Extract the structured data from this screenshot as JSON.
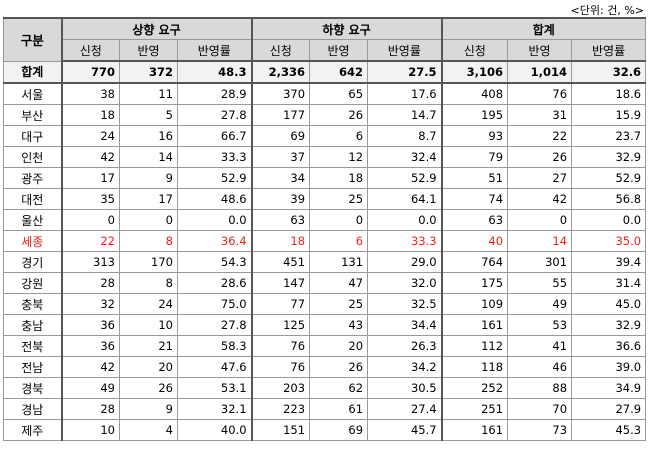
{
  "unit_note": "<단위: 건, %>",
  "headers": {
    "category": "구분",
    "groups": [
      "상향 요구",
      "하향 요구",
      "합계"
    ],
    "sub": [
      "신청",
      "반영",
      "반영률"
    ]
  },
  "rows": [
    {
      "region": "합계",
      "vals": [
        "770",
        "372",
        "48.3",
        "2,336",
        "642",
        "27.5",
        "3,106",
        "1,014",
        "32.6"
      ],
      "total": true
    },
    {
      "region": "서울",
      "vals": [
        "38",
        "11",
        "28.9",
        "370",
        "65",
        "17.6",
        "408",
        "76",
        "18.6"
      ]
    },
    {
      "region": "부산",
      "vals": [
        "18",
        "5",
        "27.8",
        "177",
        "26",
        "14.7",
        "195",
        "31",
        "15.9"
      ]
    },
    {
      "region": "대구",
      "vals": [
        "24",
        "16",
        "66.7",
        "69",
        "6",
        "8.7",
        "93",
        "22",
        "23.7"
      ]
    },
    {
      "region": "인천",
      "vals": [
        "42",
        "14",
        "33.3",
        "37",
        "12",
        "32.4",
        "79",
        "26",
        "32.9"
      ]
    },
    {
      "region": "광주",
      "vals": [
        "17",
        "9",
        "52.9",
        "34",
        "18",
        "52.9",
        "51",
        "27",
        "52.9"
      ]
    },
    {
      "region": "대전",
      "vals": [
        "35",
        "17",
        "48.6",
        "39",
        "25",
        "64.1",
        "74",
        "42",
        "56.8"
      ]
    },
    {
      "region": "울산",
      "vals": [
        "0",
        "0",
        "0.0",
        "63",
        "0",
        "0.0",
        "63",
        "0",
        "0.0"
      ]
    },
    {
      "region": "세종",
      "vals": [
        "22",
        "8",
        "36.4",
        "18",
        "6",
        "33.3",
        "40",
        "14",
        "35.0"
      ],
      "red": true
    },
    {
      "region": "경기",
      "vals": [
        "313",
        "170",
        "54.3",
        "451",
        "131",
        "29.0",
        "764",
        "301",
        "39.4"
      ]
    },
    {
      "region": "강원",
      "vals": [
        "28",
        "8",
        "28.6",
        "147",
        "47",
        "32.0",
        "175",
        "55",
        "31.4"
      ]
    },
    {
      "region": "충북",
      "vals": [
        "32",
        "24",
        "75.0",
        "77",
        "25",
        "32.5",
        "109",
        "49",
        "45.0"
      ]
    },
    {
      "region": "충남",
      "vals": [
        "36",
        "10",
        "27.8",
        "125",
        "43",
        "34.4",
        "161",
        "53",
        "32.9"
      ]
    },
    {
      "region": "전북",
      "vals": [
        "36",
        "21",
        "58.3",
        "76",
        "20",
        "26.3",
        "112",
        "41",
        "36.6"
      ]
    },
    {
      "region": "전남",
      "vals": [
        "42",
        "20",
        "47.6",
        "76",
        "26",
        "34.2",
        "118",
        "46",
        "39.0"
      ]
    },
    {
      "region": "경북",
      "vals": [
        "49",
        "26",
        "53.1",
        "203",
        "62",
        "30.5",
        "252",
        "88",
        "34.9"
      ]
    },
    {
      "region": "경남",
      "vals": [
        "28",
        "9",
        "32.1",
        "223",
        "61",
        "27.4",
        "251",
        "70",
        "27.9"
      ]
    },
    {
      "region": "제주",
      "vals": [
        "10",
        "4",
        "40.0",
        "151",
        "69",
        "45.7",
        "161",
        "73",
        "45.3"
      ]
    }
  ]
}
